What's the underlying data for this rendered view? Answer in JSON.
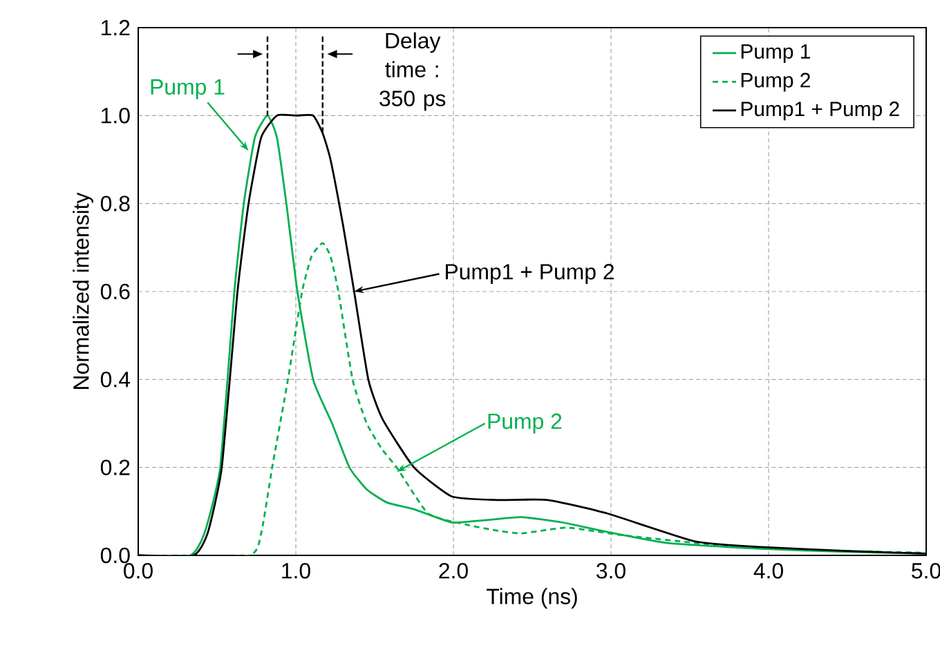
{
  "chart_data": {
    "type": "line",
    "xlabel": "Time (ns)",
    "ylabel": "Normalized intensity",
    "xlim": [
      0,
      5
    ],
    "ylim": [
      0,
      1.2
    ],
    "xticks": [
      {
        "value": 0,
        "label": "0.0"
      },
      {
        "value": 1,
        "label": "1.0"
      },
      {
        "value": 2,
        "label": "2.0"
      },
      {
        "value": 3,
        "label": "3.0"
      },
      {
        "value": 4,
        "label": "4.0"
      },
      {
        "value": 5,
        "label": "5.0"
      }
    ],
    "yticks": [
      {
        "value": 0,
        "label": "0.0"
      },
      {
        "value": 0.2,
        "label": "0.2"
      },
      {
        "value": 0.4,
        "label": "0.4"
      },
      {
        "value": 0.6,
        "label": "0.6"
      },
      {
        "value": 0.8,
        "label": "0.8"
      },
      {
        "value": 1.0,
        "label": "1.0"
      },
      {
        "value": 1.2,
        "label": "1.2"
      }
    ],
    "grid": true,
    "legend": "top right",
    "marker": "none",
    "ref_lines": [
      {
        "axis": "x",
        "value": 0.82,
        "line_style": "dashed",
        "color": "#000000"
      },
      {
        "axis": "x",
        "value": 1.17,
        "line_style": "dashed",
        "color": "#000000"
      }
    ],
    "series": [
      {
        "name": "Pump 1",
        "color": "#00b050",
        "line_style": "solid",
        "x": [
          0.0,
          0.33,
          0.42,
          0.52,
          0.61,
          0.67,
          0.74,
          0.82,
          0.88,
          0.94,
          1.01,
          1.11,
          1.23,
          1.34,
          1.45,
          1.58,
          1.75,
          1.99,
          2.2,
          2.43,
          2.69,
          2.98,
          3.36,
          3.95,
          4.5,
          5.0
        ],
        "values": [
          0,
          0,
          0.05,
          0.2,
          0.6,
          0.8,
          0.95,
          1.0,
          0.95,
          0.8,
          0.6,
          0.4,
          0.3,
          0.2,
          0.15,
          0.12,
          0.105,
          0.075,
          0.08,
          0.087,
          0.075,
          0.053,
          0.028,
          0.015,
          0.008,
          0.004
        ]
      },
      {
        "name": "Pump 2",
        "color": "#00b050",
        "line_style": "dashed",
        "x": [
          0.0,
          0.7,
          0.78,
          0.85,
          0.95,
          1.04,
          1.1,
          1.17,
          1.22,
          1.27,
          1.36,
          1.45,
          1.55,
          1.64,
          1.84,
          2.08,
          2.25,
          2.43,
          2.72,
          3.07,
          3.66,
          4.24,
          5.0
        ],
        "values": [
          0,
          0,
          0.05,
          0.2,
          0.4,
          0.6,
          0.68,
          0.71,
          0.68,
          0.6,
          0.4,
          0.3,
          0.24,
          0.2,
          0.095,
          0.07,
          0.058,
          0.05,
          0.063,
          0.046,
          0.024,
          0.012,
          0.006
        ]
      },
      {
        "name": "Pump1 + Pump 2",
        "color": "#000000",
        "line_style": "solid",
        "x": [
          0.0,
          0.35,
          0.44,
          0.53,
          0.63,
          0.7,
          0.78,
          0.88,
          1.0,
          1.11,
          1.17,
          1.22,
          1.3,
          1.37,
          1.46,
          1.55,
          1.75,
          1.99,
          2.28,
          2.6,
          2.98,
          3.53,
          3.95,
          4.5,
          5.0
        ],
        "values": [
          0,
          0,
          0.05,
          0.2,
          0.6,
          0.8,
          0.95,
          1.0,
          1.0,
          1.0,
          0.96,
          0.9,
          0.75,
          0.6,
          0.4,
          0.31,
          0.2,
          0.134,
          0.126,
          0.126,
          0.095,
          0.032,
          0.019,
          0.01,
          0.004
        ]
      }
    ],
    "annotations": [
      {
        "text": "Pump 1",
        "x": 0.7,
        "y": 0.92
      },
      {
        "text": "Pump 2",
        "x": 1.64,
        "y": 0.19
      },
      {
        "text": "Pump1 + Pump 2",
        "x": 1.37,
        "y": 0.6
      },
      "Delay time : 350 ps"
    ]
  }
}
